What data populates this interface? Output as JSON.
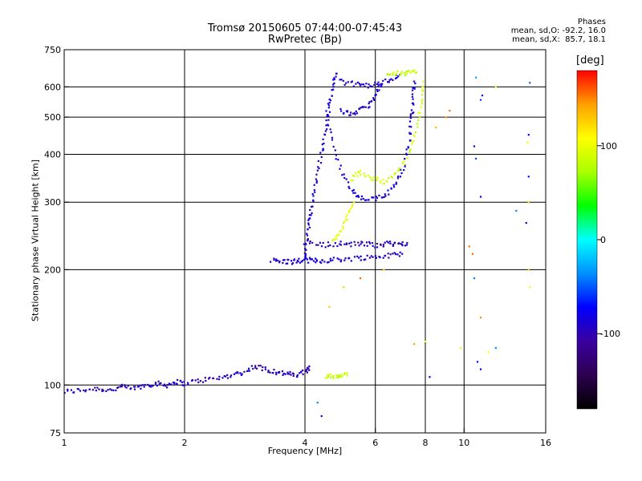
{
  "header": {
    "title": "Tromsø 20150605 07:44:00-07:45:43",
    "subtitle": "RwPretec (Bp)",
    "stats": [
      "Phases",
      "mean, sd,O: -92.2, 16.0",
      "mean, sd,X:  85.7, 18.1"
    ]
  },
  "colorbar": {
    "unit": "[deg]",
    "ticks": [
      {
        "value": 100,
        "label": "100"
      },
      {
        "value": 0,
        "label": "0"
      },
      {
        "value": -100,
        "label": "-100"
      }
    ],
    "range": [
      -180,
      180
    ],
    "stops": [
      "#000000",
      "#2d0050",
      "#3a00a0",
      "#0000ff",
      "#0090ff",
      "#00ffff",
      "#00ff00",
      "#aaff00",
      "#ffff00",
      "#ffa000",
      "#ff0000"
    ]
  },
  "chart_data": {
    "type": "scatter",
    "title": "Tromsø 20150605 07:44:00-07:45:43",
    "subtitle": "RwPretec (Bp)",
    "xlabel": "Frequency [MHz]",
    "ylabel": "Stationary phase Virtual Height [km]",
    "x_scale": "log",
    "y_scale": "log",
    "xlim": [
      1,
      16
    ],
    "ylim": [
      75,
      750
    ],
    "x_ticks": [
      {
        "value": 1,
        "label": "1"
      },
      {
        "value": 2,
        "label": "2"
      },
      {
        "value": 4,
        "label": "4"
      },
      {
        "value": 6,
        "label": "6"
      },
      {
        "value": 8,
        "label": "8"
      },
      {
        "value": 10,
        "label": "10"
      },
      {
        "value": 16,
        "label": "16"
      }
    ],
    "y_ticks": [
      {
        "value": 75,
        "label": "75"
      },
      {
        "value": 100,
        "label": "100"
      },
      {
        "value": 200,
        "label": "200"
      },
      {
        "value": 300,
        "label": "300"
      },
      {
        "value": 400,
        "label": "400"
      },
      {
        "value": 500,
        "label": "500"
      },
      {
        "value": 600,
        "label": "600"
      },
      {
        "value": 750,
        "label": "750"
      }
    ],
    "grid_x": [
      2,
      4,
      6,
      8,
      10
    ],
    "grid_y": [
      100,
      200,
      300,
      400,
      500,
      600
    ],
    "grid": true,
    "traces": [
      {
        "mode": "O",
        "phase": -95,
        "points": [
          [
            1.0,
            96
          ],
          [
            1.1,
            97
          ],
          [
            1.2,
            98
          ],
          [
            1.3,
            97
          ],
          [
            1.4,
            99
          ],
          [
            1.5,
            98
          ],
          [
            1.6,
            100
          ],
          [
            1.7,
            101
          ],
          [
            1.8,
            100
          ],
          [
            1.9,
            102
          ],
          [
            2.0,
            101
          ],
          [
            2.2,
            103
          ],
          [
            2.4,
            104
          ],
          [
            2.6,
            106
          ],
          [
            2.8,
            108
          ],
          [
            3.0,
            112
          ],
          [
            3.2,
            110
          ],
          [
            3.4,
            108
          ],
          [
            3.6,
            107
          ],
          [
            3.8,
            106
          ],
          [
            4.0,
            108
          ],
          [
            4.1,
            112
          ]
        ]
      },
      {
        "mode": "O",
        "phase": -90,
        "points": [
          [
            3.3,
            212
          ],
          [
            3.5,
            210
          ],
          [
            3.7,
            210
          ],
          [
            3.9,
            211
          ],
          [
            4.1,
            212
          ],
          [
            4.3,
            211
          ],
          [
            4.6,
            212
          ],
          [
            5.0,
            213
          ],
          [
            5.5,
            215
          ],
          [
            6.0,
            216
          ],
          [
            6.5,
            218
          ],
          [
            7.0,
            220
          ]
        ]
      },
      {
        "mode": "O",
        "phase": -88,
        "points": [
          [
            4.0,
            215
          ],
          [
            4.05,
            240
          ],
          [
            4.1,
            265
          ],
          [
            4.15,
            290
          ],
          [
            4.25,
            330
          ],
          [
            4.35,
            380
          ],
          [
            4.45,
            430
          ],
          [
            4.55,
            490
          ],
          [
            4.6,
            540
          ],
          [
            4.7,
            600
          ],
          [
            4.8,
            650
          ]
        ]
      },
      {
        "mode": "O",
        "phase": -85,
        "points": [
          [
            4.5,
            520
          ],
          [
            4.7,
            420
          ],
          [
            5.0,
            350
          ],
          [
            5.3,
            315
          ],
          [
            5.6,
            305
          ],
          [
            6.0,
            305
          ],
          [
            6.4,
            315
          ],
          [
            6.8,
            340
          ],
          [
            7.1,
            380
          ],
          [
            7.3,
            440
          ],
          [
            7.4,
            500
          ],
          [
            7.45,
            560
          ],
          [
            7.5,
            620
          ]
        ]
      },
      {
        "mode": "O",
        "phase": -90,
        "points": [
          [
            4.9,
            520
          ],
          [
            5.2,
            510
          ],
          [
            5.5,
            520
          ],
          [
            5.8,
            540
          ],
          [
            6.0,
            570
          ],
          [
            6.2,
            610
          ]
        ]
      },
      {
        "mode": "O",
        "phase": -92,
        "points": [
          [
            4.9,
            620
          ],
          [
            5.3,
            610
          ],
          [
            5.7,
            605
          ],
          [
            6.1,
            610
          ],
          [
            6.5,
            625
          ],
          [
            6.9,
            645
          ]
        ]
      },
      {
        "mode": "O",
        "phase": -95,
        "points": [
          [
            4.0,
            236
          ],
          [
            4.4,
            232
          ],
          [
            4.8,
            234
          ],
          [
            5.2,
            233
          ],
          [
            5.6,
            234
          ],
          [
            6.0,
            232
          ],
          [
            6.4,
            234
          ],
          [
            6.8,
            233
          ],
          [
            7.2,
            235
          ]
        ]
      },
      {
        "mode": "X",
        "phase": 85,
        "points": [
          [
            4.5,
            106
          ],
          [
            4.7,
            105
          ],
          [
            4.9,
            106
          ],
          [
            5.1,
            106
          ]
        ]
      },
      {
        "mode": "X",
        "phase": 88,
        "points": [
          [
            5.2,
            345
          ],
          [
            5.5,
            360
          ],
          [
            5.9,
            345
          ],
          [
            6.3,
            340
          ],
          [
            6.8,
            360
          ],
          [
            7.3,
            400
          ],
          [
            7.6,
            460
          ],
          [
            7.8,
            540
          ],
          [
            7.9,
            620
          ]
        ]
      },
      {
        "mode": "X",
        "phase": 83,
        "points": [
          [
            6.4,
            650
          ],
          [
            6.8,
            655
          ],
          [
            7.2,
            650
          ],
          [
            7.6,
            655
          ]
        ]
      },
      {
        "mode": "X",
        "phase": 95,
        "points": [
          [
            4.7,
            240
          ],
          [
            4.9,
            250
          ],
          [
            5.1,
            275
          ],
          [
            5.3,
            300
          ]
        ]
      },
      {
        "mode": "noise",
        "phase": 130,
        "points": [
          [
            9.0,
            500
          ],
          [
            9.2,
            520
          ],
          [
            8.5,
            470
          ],
          [
            12.0,
            600
          ],
          [
            14.4,
            430
          ],
          [
            14.5,
            300
          ],
          [
            5.0,
            180
          ],
          [
            5.5,
            190
          ],
          [
            4.6,
            160
          ],
          [
            6.3,
            200
          ],
          [
            8.0,
            130
          ],
          [
            10.5,
            220
          ],
          [
            10.3,
            230
          ],
          [
            14.5,
            200
          ],
          [
            11.0,
            150
          ],
          [
            14.6,
            180
          ],
          [
            9.8,
            125
          ],
          [
            11.5,
            122
          ],
          [
            7.5,
            128
          ]
        ]
      },
      {
        "mode": "noise",
        "phase": -60,
        "points": [
          [
            10.7,
            635
          ],
          [
            11.1,
            570
          ],
          [
            14.6,
            615
          ],
          [
            11.0,
            555
          ],
          [
            14.5,
            450
          ],
          [
            14.5,
            350
          ],
          [
            11.0,
            310
          ],
          [
            13.5,
            285
          ],
          [
            14.3,
            265
          ],
          [
            10.6,
            190
          ],
          [
            12.0,
            125
          ],
          [
            10.8,
            115
          ],
          [
            11.0,
            110
          ],
          [
            8.2,
            105
          ],
          [
            10.6,
            420
          ],
          [
            10.7,
            390
          ],
          [
            4.3,
            90
          ],
          [
            4.4,
            83
          ]
        ]
      }
    ]
  }
}
